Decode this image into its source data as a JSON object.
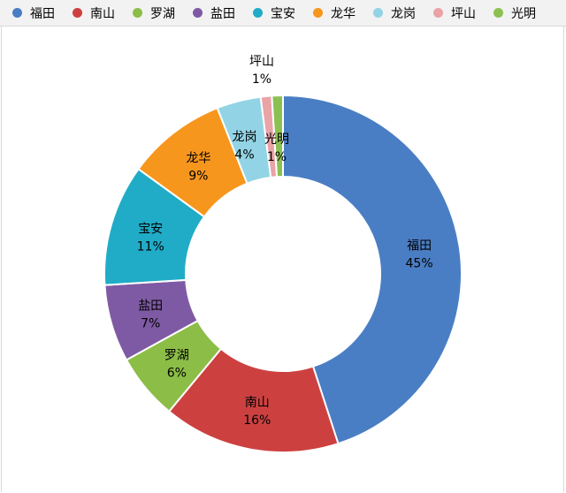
{
  "chart_data": {
    "type": "pie",
    "donut": true,
    "title": "",
    "legend_position": "top",
    "categories": [
      "福田",
      "南山",
      "罗湖",
      "盐田",
      "宝安",
      "龙华",
      "龙岗",
      "坪山",
      "光明"
    ],
    "values": [
      45,
      16,
      6,
      7,
      11,
      9,
      4,
      1,
      1
    ],
    "labels": [
      "45%",
      "16%",
      "6%",
      "7%",
      "11%",
      "9%",
      "4%",
      "1%",
      "1%"
    ],
    "colors": [
      "#4a7ec4",
      "#cc4140",
      "#8cbd47",
      "#7f5aa4",
      "#20acc7",
      "#f7961d",
      "#92d4e5",
      "#eaa3a6",
      "#8cc152"
    ]
  }
}
